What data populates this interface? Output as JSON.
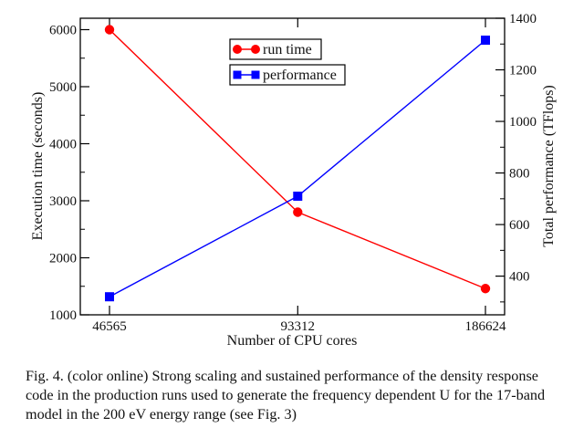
{
  "chart_data": {
    "type": "line",
    "title": "",
    "xlabel": "Number of CPU cores",
    "ylabel": "Execution time (seconds)",
    "y2label": "Total performance (TFlops)",
    "x": [
      46565,
      93312,
      186624
    ],
    "x_tick_labels": [
      "46565",
      "93312",
      "186624"
    ],
    "x_scale": "log2",
    "ylim": [
      1000,
      6200
    ],
    "y_ticks": [
      1000,
      2000,
      3000,
      4000,
      5000,
      6000
    ],
    "y_tick_labels": [
      "1000",
      "2000",
      "3000",
      "4000",
      "5000",
      "6000"
    ],
    "y2lim": [
      250,
      1400
    ],
    "y2_ticks": [
      400,
      600,
      800,
      1000,
      1200,
      1400
    ],
    "y2_tick_labels": [
      "400",
      "600",
      "800",
      "1000",
      "1200",
      "1400"
    ],
    "grid": false,
    "legend_position": "top-center",
    "series": [
      {
        "name": "run time",
        "axis": "left",
        "marker": "circle",
        "color": "#ff0000",
        "values": [
          6000,
          2800,
          1460
        ]
      },
      {
        "name": "performance",
        "axis": "right",
        "marker": "square",
        "color": "#0000ff",
        "values": [
          320,
          710,
          1315
        ]
      }
    ]
  },
  "caption": "Fig. 4.   (color online) Strong scaling and sustained performance of the density response code in the production runs used to generate the frequency dependent U for the 17-band model in the 200 eV energy range (see Fig. 3)"
}
